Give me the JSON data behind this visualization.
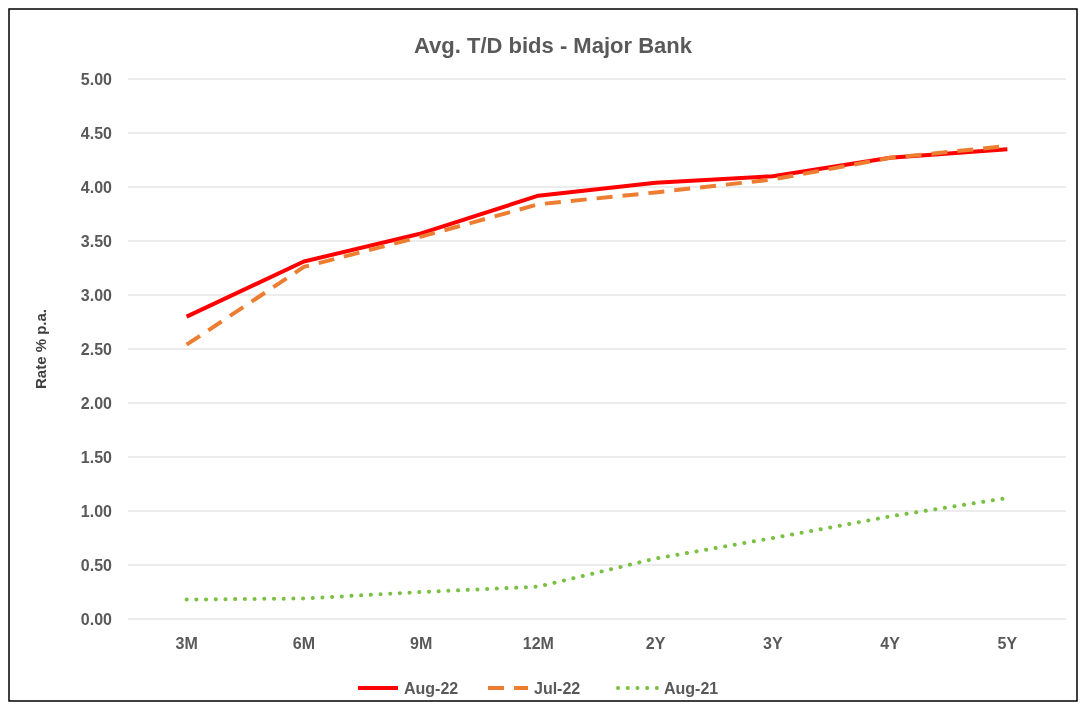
{
  "chart_data": {
    "type": "line",
    "title": "Avg. T/D bids - Major Bank",
    "ylabel": "Rate % p.a.",
    "categories": [
      "3M",
      "6M",
      "9M",
      "12M",
      "2Y",
      "3Y",
      "4Y",
      "5Y"
    ],
    "series": [
      {
        "name": "Aug-22",
        "color": "#ff0000",
        "line_style": "solid",
        "values": [
          2.8,
          3.31,
          3.57,
          3.92,
          4.04,
          4.1,
          4.27,
          4.35
        ]
      },
      {
        "name": "Jul-22",
        "color": "#ed7d31",
        "line_style": "dashed",
        "values": [
          2.54,
          3.26,
          3.54,
          3.84,
          3.95,
          4.07,
          4.27,
          4.38
        ]
      },
      {
        "name": "Aug-21",
        "color": "#7ac143",
        "line_style": "dotted",
        "values": [
          0.18,
          0.19,
          0.25,
          0.3,
          0.56,
          0.75,
          0.95,
          1.12
        ]
      }
    ],
    "ylim": [
      0,
      5
    ],
    "yticks": [
      {
        "value": 0,
        "label": "0.00"
      },
      {
        "value": 0.5,
        "label": "0.50"
      },
      {
        "value": 1,
        "label": "1.00"
      },
      {
        "value": 1.5,
        "label": "1.50"
      },
      {
        "value": 2,
        "label": "2.00"
      },
      {
        "value": 2.5,
        "label": "2.50"
      },
      {
        "value": 3,
        "label": "3.00"
      },
      {
        "value": 3.5,
        "label": "3.50"
      },
      {
        "value": 4,
        "label": "4.00"
      },
      {
        "value": 4.5,
        "label": "4.50"
      },
      {
        "value": 5,
        "label": "5.00"
      }
    ],
    "grid": "y",
    "legend": "bottom",
    "marker": "none"
  }
}
